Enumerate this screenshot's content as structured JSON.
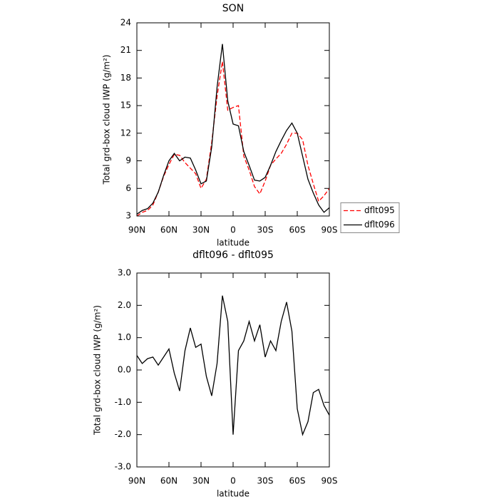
{
  "chart_data": [
    {
      "type": "line",
      "title": "SON",
      "xlabel": "latitude",
      "ylabel": "Total grd-box cloud IWP (g/m²)",
      "x": [
        90,
        85,
        80,
        75,
        70,
        65,
        60,
        55,
        50,
        45,
        40,
        35,
        30,
        25,
        20,
        15,
        10,
        5,
        0,
        -5,
        -10,
        -15,
        -20,
        -25,
        -30,
        -35,
        -40,
        -45,
        -50,
        -55,
        -60,
        -65,
        -70,
        -75,
        -80,
        -85,
        -90
      ],
      "series": [
        {
          "name": "dflt095",
          "color": "#ff0000",
          "dash": "dashed",
          "values": [
            3.0,
            3.4,
            3.6,
            4.2,
            5.6,
            7.3,
            8.6,
            9.7,
            9.6,
            8.8,
            8.2,
            7.6,
            6.0,
            7.0,
            11,
            16,
            19.8,
            14.5,
            14.8,
            15,
            9.5,
            8,
            6.2,
            5.4,
            6.8,
            8.5,
            9.2,
            9.8,
            10.8,
            12,
            12,
            11.3,
            8.5,
            6.5,
            4.6,
            5.2,
            6.0
          ]
        },
        {
          "name": "dflt096",
          "color": "#000000",
          "dash": "solid",
          "values": [
            3.2,
            3.6,
            3.8,
            4.4,
            5.6,
            7.4,
            9.0,
            9.8,
            9.0,
            9.4,
            9.3,
            8.0,
            6.5,
            6.8,
            10.5,
            17,
            21.7,
            15.5,
            13,
            12.8,
            10,
            8.5,
            6.9,
            6.8,
            7.2,
            8.5,
            10,
            11.2,
            12.3,
            13.1,
            12,
            9.5,
            7,
            5.5,
            4.2,
            3.4,
            3.9
          ]
        }
      ],
      "xlim": [
        90,
        -90
      ],
      "xticks": [
        {
          "value": 90,
          "label": "90N"
        },
        {
          "value": 60,
          "label": "60N"
        },
        {
          "value": 30,
          "label": "30N"
        },
        0,
        {
          "value": -30,
          "label": "30S"
        },
        {
          "value": -60,
          "label": "60S"
        },
        {
          "value": -90,
          "label": "90S"
        }
      ],
      "ylim": [
        3,
        24
      ],
      "yticks": [
        3,
        6,
        9,
        12,
        15,
        18,
        21,
        24
      ],
      "legend": "right"
    },
    {
      "type": "line",
      "title": "dflt096 - dflt095",
      "xlabel": "latitude",
      "ylabel": "Total grd-box cloud IWP (g/m²)",
      "x": [
        90,
        85,
        80,
        75,
        70,
        65,
        60,
        55,
        50,
        45,
        40,
        35,
        30,
        25,
        20,
        15,
        10,
        5,
        0,
        -5,
        -10,
        -15,
        -20,
        -25,
        -30,
        -35,
        -40,
        -45,
        -50,
        -55,
        -60,
        -65,
        -70,
        -75,
        -80,
        -85,
        -90
      ],
      "values": [
        0.45,
        0.2,
        0.35,
        0.4,
        0.15,
        0.4,
        0.65,
        -0.1,
        -0.65,
        0.6,
        1.3,
        0.7,
        0.8,
        -0.2,
        -0.8,
        0.2,
        2.3,
        1.5,
        -2.0,
        0.6,
        0.9,
        1.5,
        0.9,
        1.4,
        0.4,
        0.9,
        0.6,
        1.5,
        2.1,
        1.2,
        -1.2,
        -2.0,
        -1.6,
        -0.7,
        -0.6,
        -1.1,
        -1.4
      ],
      "color": "#000000",
      "xlim": [
        90,
        -90
      ],
      "xticks": [
        {
          "value": 90,
          "label": "90N"
        },
        {
          "value": 60,
          "label": "60N"
        },
        {
          "value": 30,
          "label": "30N"
        },
        0,
        {
          "value": -30,
          "label": "30S"
        },
        {
          "value": -60,
          "label": "60S"
        },
        {
          "value": -90,
          "label": "90S"
        }
      ],
      "ylim": [
        -3,
        3
      ],
      "yticks": [
        {
          "value": -3,
          "label": "-3.0"
        },
        {
          "value": -2,
          "label": "-2.0"
        },
        {
          "value": -1,
          "label": "-1.0"
        },
        {
          "value": 0,
          "label": "0.0"
        },
        {
          "value": 1,
          "label": "1.0"
        },
        {
          "value": 2,
          "label": "2.0"
        },
        {
          "value": 3,
          "label": "3.0"
        }
      ]
    }
  ]
}
